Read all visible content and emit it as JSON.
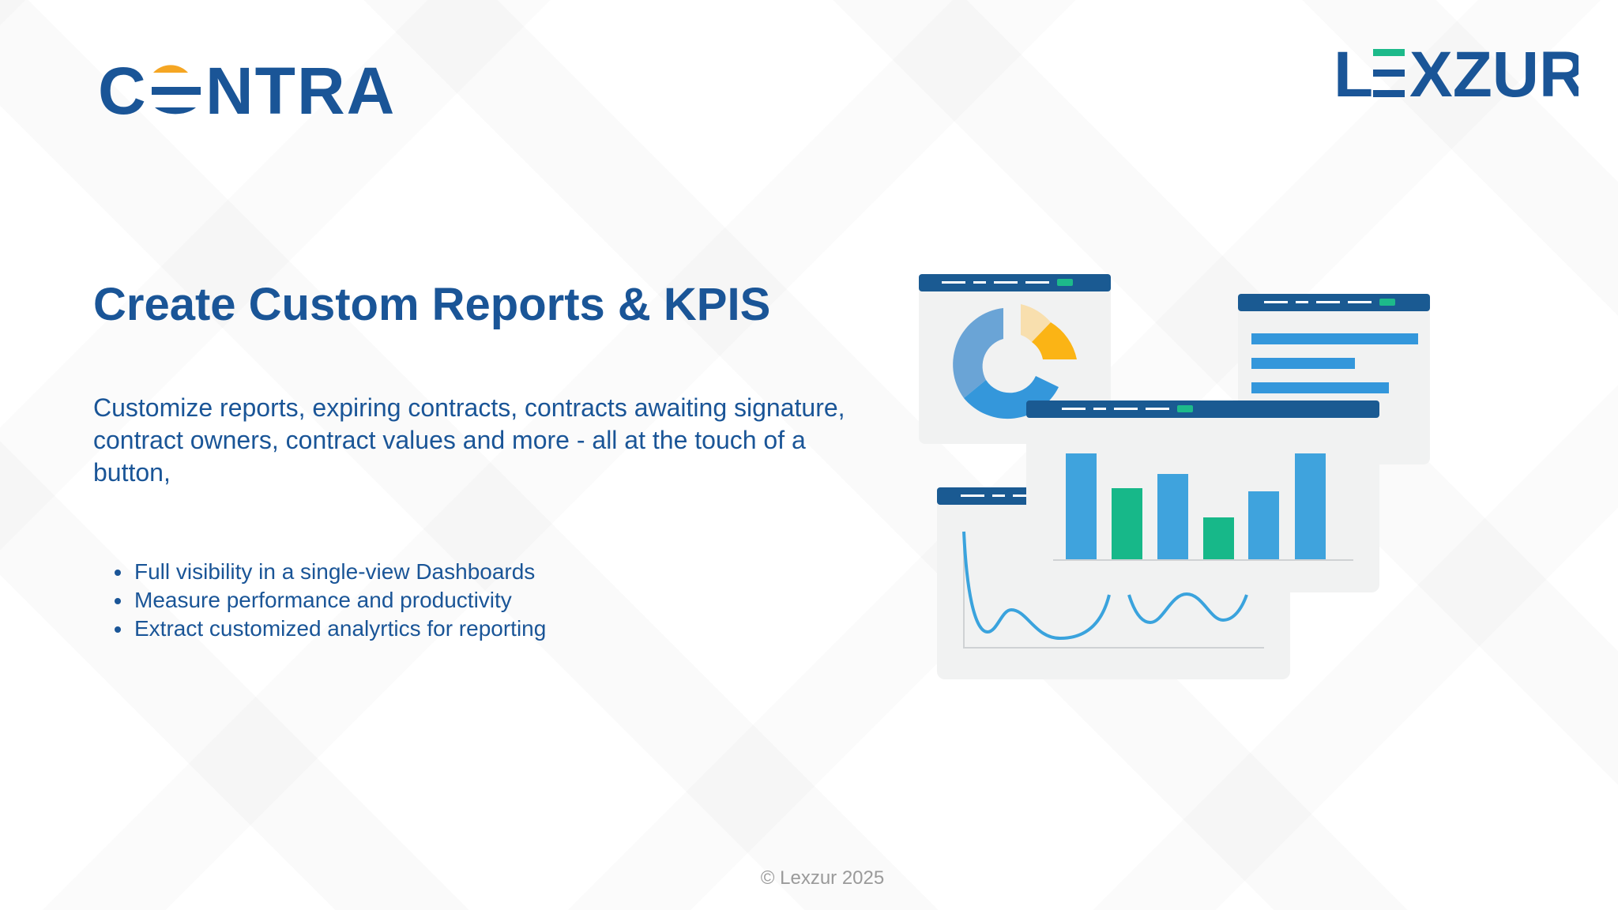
{
  "brand": {
    "left_logo": "CENTRA",
    "right_logo": "LEXZUR",
    "colors": {
      "primary": "#1a5597",
      "orange": "#f5a623",
      "green": "#1dba8a",
      "bar_blue": "#3f9edb",
      "donut_light": "#6aa4d6",
      "donut_pale": "#f8dfae",
      "donut_orange": "#fbb415"
    }
  },
  "slide": {
    "title": "Create Custom Reports & KPIS",
    "description": "Customize reports, expiring contracts, contracts awaiting signature, contract owners, contract values and more - all at the touch of a button,",
    "bullets": [
      "Full visibility in a single-view Dashboards",
      "Measure performance and productivity",
      "Extract customized analyrtics for reporting"
    ]
  },
  "footer": {
    "copyright": "© Lexzur 2025"
  }
}
